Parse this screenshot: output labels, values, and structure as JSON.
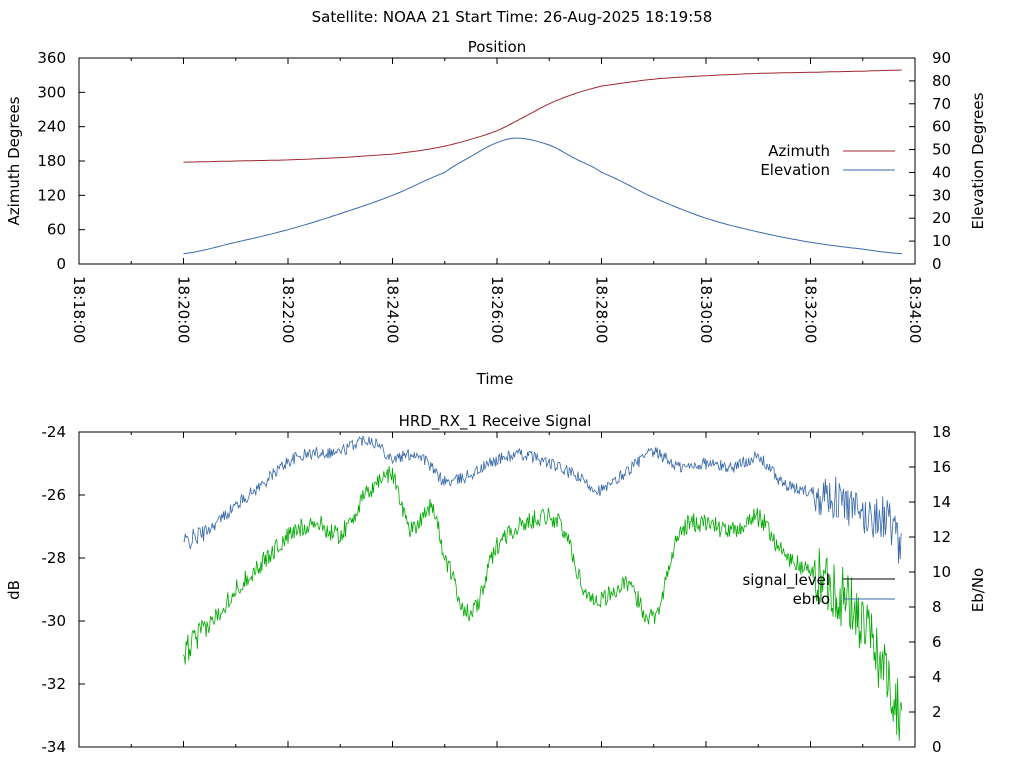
{
  "header": {
    "title": "Satellite: NOAA 21    Start Time: 26-Aug-2025 18:19:58"
  },
  "chart_data": [
    {
      "type": "line",
      "title": "Position",
      "xlabel": "Time",
      "ylabel": "Azimuth Degrees",
      "y2label": "Elevation Degrees",
      "xlim": [
        "18:18:00",
        "18:34:00"
      ],
      "x_ticks": [
        "18:18:00",
        "18:20:00",
        "18:22:00",
        "18:24:00",
        "18:26:00",
        "18:28:00",
        "18:30:00",
        "18:32:00",
        "18:34:00"
      ],
      "ylim": [
        0,
        360
      ],
      "y_ticks": [
        "0",
        "60",
        "120",
        "180",
        "240",
        "300",
        "360"
      ],
      "y2lim": [
        0,
        90
      ],
      "y2_ticks": [
        "0",
        "10",
        "20",
        "30",
        "40",
        "50",
        "60",
        "70",
        "80",
        "90"
      ],
      "legend_position": "right",
      "grid": false,
      "series": [
        {
          "name": "Azimuth",
          "axis": "left",
          "color": "#a0282f",
          "x": [
            "18:20:00",
            "18:21:00",
            "18:22:00",
            "18:23:00",
            "18:24:00",
            "18:24:30",
            "18:25:00",
            "18:25:30",
            "18:26:00",
            "18:26:30",
            "18:27:00",
            "18:27:30",
            "18:28:00",
            "18:29:00",
            "18:30:00",
            "18:31:00",
            "18:32:00",
            "18:33:00",
            "18:33:45"
          ],
          "y": [
            178,
            180,
            182,
            186,
            192,
            198,
            206,
            218,
            233,
            256,
            280,
            298,
            311,
            323,
            329,
            333,
            335,
            337,
            339
          ]
        },
        {
          "name": "Elevation",
          "axis": "right",
          "color": "#3a6aaa",
          "x": [
            "18:20:00",
            "18:21:00",
            "18:22:00",
            "18:23:00",
            "18:24:00",
            "18:25:00",
            "18:25:30",
            "18:26:00",
            "18:26:24",
            "18:27:00",
            "18:27:30",
            "18:28:00",
            "18:29:00",
            "18:30:00",
            "18:31:00",
            "18:32:00",
            "18:33:00",
            "18:33:45"
          ],
          "y": [
            4.5,
            9.5,
            15,
            22,
            30,
            40,
            47,
            53,
            55,
            52,
            46,
            40,
            29,
            20,
            14,
            9.5,
            6.5,
            4.5
          ]
        }
      ]
    },
    {
      "type": "line",
      "title": "HRD_RX_1 Receive Signal",
      "xlabel": "",
      "ylabel": "dB",
      "y2label": "Eb/No",
      "ylim": [
        -34,
        -24
      ],
      "y_ticks": [
        "-24",
        "-26",
        "-28",
        "-30",
        "-32",
        "-34"
      ],
      "y2lim": [
        0,
        18
      ],
      "y2_ticks": [
        "0",
        "2",
        "4",
        "6",
        "8",
        "10",
        "12",
        "14",
        "16",
        "18"
      ],
      "legend_position": "right",
      "grid": false,
      "series": [
        {
          "name": "signal_level",
          "axis": "left",
          "color": "#000000",
          "x": [],
          "y": []
        },
        {
          "name": "ebno",
          "axis": "right",
          "color": "#3a6aaa",
          "x": [
            "18:20:00",
            "18:20:30",
            "18:21:00",
            "18:21:30",
            "18:22:00",
            "18:22:30",
            "18:23:00",
            "18:23:30",
            "18:23:45",
            "18:24:00",
            "18:24:30",
            "18:25:00",
            "18:25:30",
            "18:26:00",
            "18:26:30",
            "18:27:00",
            "18:27:30",
            "18:28:00",
            "18:28:30",
            "18:29:00",
            "18:29:30",
            "18:30:00",
            "18:30:30",
            "18:31:00",
            "18:31:30",
            "18:32:00",
            "18:32:30",
            "18:33:00",
            "18:33:30",
            "18:33:45"
          ],
          "y": [
            11.7,
            12.5,
            13.8,
            15.0,
            16.3,
            16.8,
            16.9,
            17.6,
            17.2,
            16.5,
            16.7,
            15.2,
            15.6,
            16.4,
            16.7,
            16.2,
            15.5,
            14.7,
            15.8,
            16.8,
            16.0,
            16.2,
            16.0,
            16.5,
            15.0,
            14.6,
            14.2,
            13.2,
            13.0,
            11.0
          ]
        },
        {
          "name": "",
          "axis": "right",
          "color": "#00aa00",
          "x": [
            "18:20:00",
            "18:20:30",
            "18:21:00",
            "18:21:30",
            "18:22:00",
            "18:22:30",
            "18:23:00",
            "18:23:30",
            "18:24:00",
            "18:24:20",
            "18:24:45",
            "18:25:00",
            "18:25:30",
            "18:26:00",
            "18:26:30",
            "18:27:00",
            "18:27:20",
            "18:27:40",
            "18:28:00",
            "18:28:30",
            "18:29:00",
            "18:29:30",
            "18:30:00",
            "18:30:30",
            "18:31:00",
            "18:31:30",
            "18:32:00",
            "18:32:30",
            "18:33:00",
            "18:33:30",
            "18:33:45"
          ],
          "y": [
            5.5,
            7.0,
            9.0,
            10.5,
            12.0,
            12.8,
            12.2,
            14.4,
            15.5,
            12.5,
            13.7,
            10.8,
            7.6,
            11.5,
            12.7,
            13.2,
            12.0,
            9.0,
            8.5,
            9.2,
            7.5,
            12.2,
            12.8,
            12.3,
            13.1,
            11.0,
            10.0,
            9.0,
            7.0,
            4.0,
            2.0
          ]
        }
      ]
    }
  ]
}
